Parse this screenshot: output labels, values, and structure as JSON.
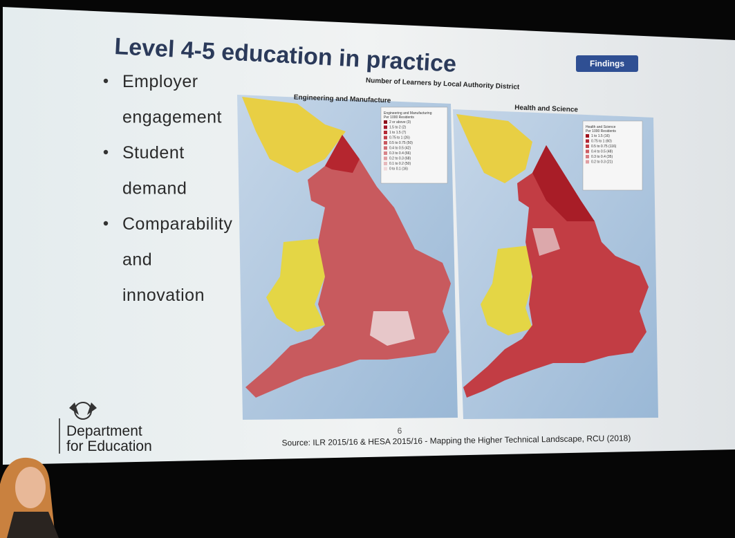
{
  "slide": {
    "title": "Level 4-5 education in practice",
    "badge": "Findings",
    "bullets": [
      "Employer",
      "engagement",
      "Student",
      "demand",
      "Comparability",
      "and",
      "innovation"
    ],
    "figure_title": "Number of Learners by Local Authority District",
    "maps": [
      {
        "title": "Engineering and Manufacture",
        "legend_title": [
          "Engineering and Manufacturing",
          "Per 1000 Residents"
        ],
        "legend": [
          "2 or above (3)",
          "1.5 to 2 (2)",
          "1 to 1.5 (7)",
          "0.75 to 1 (26)",
          "0.5 to 0.75 (50)",
          "0.4 to 0.5 (42)",
          "0.3 to 0.4 (66)",
          "0.2 to 0.3 (68)",
          "0.1 to 0.2 (50)",
          "0 to 0.1 (16)"
        ]
      },
      {
        "title": "Health and Science",
        "legend_title": [
          "Health and Science",
          "Per 1000 Residents"
        ],
        "legend": [
          "1 to 1.5 (16)",
          "0.75 to 1 (60)",
          "0.5 to 0.75 (116)",
          "0.4 to 0.5 (48)",
          "0.3 to 0.4 (35)",
          "0.2 to 0.3 (21)"
        ]
      }
    ],
    "page_number": "6",
    "source": "Source: ILR 2015/16 & HESA 2015/16 - Mapping the Higher Technical Landscape, RCU (2018)",
    "logo": [
      "Department",
      "for Education"
    ]
  }
}
